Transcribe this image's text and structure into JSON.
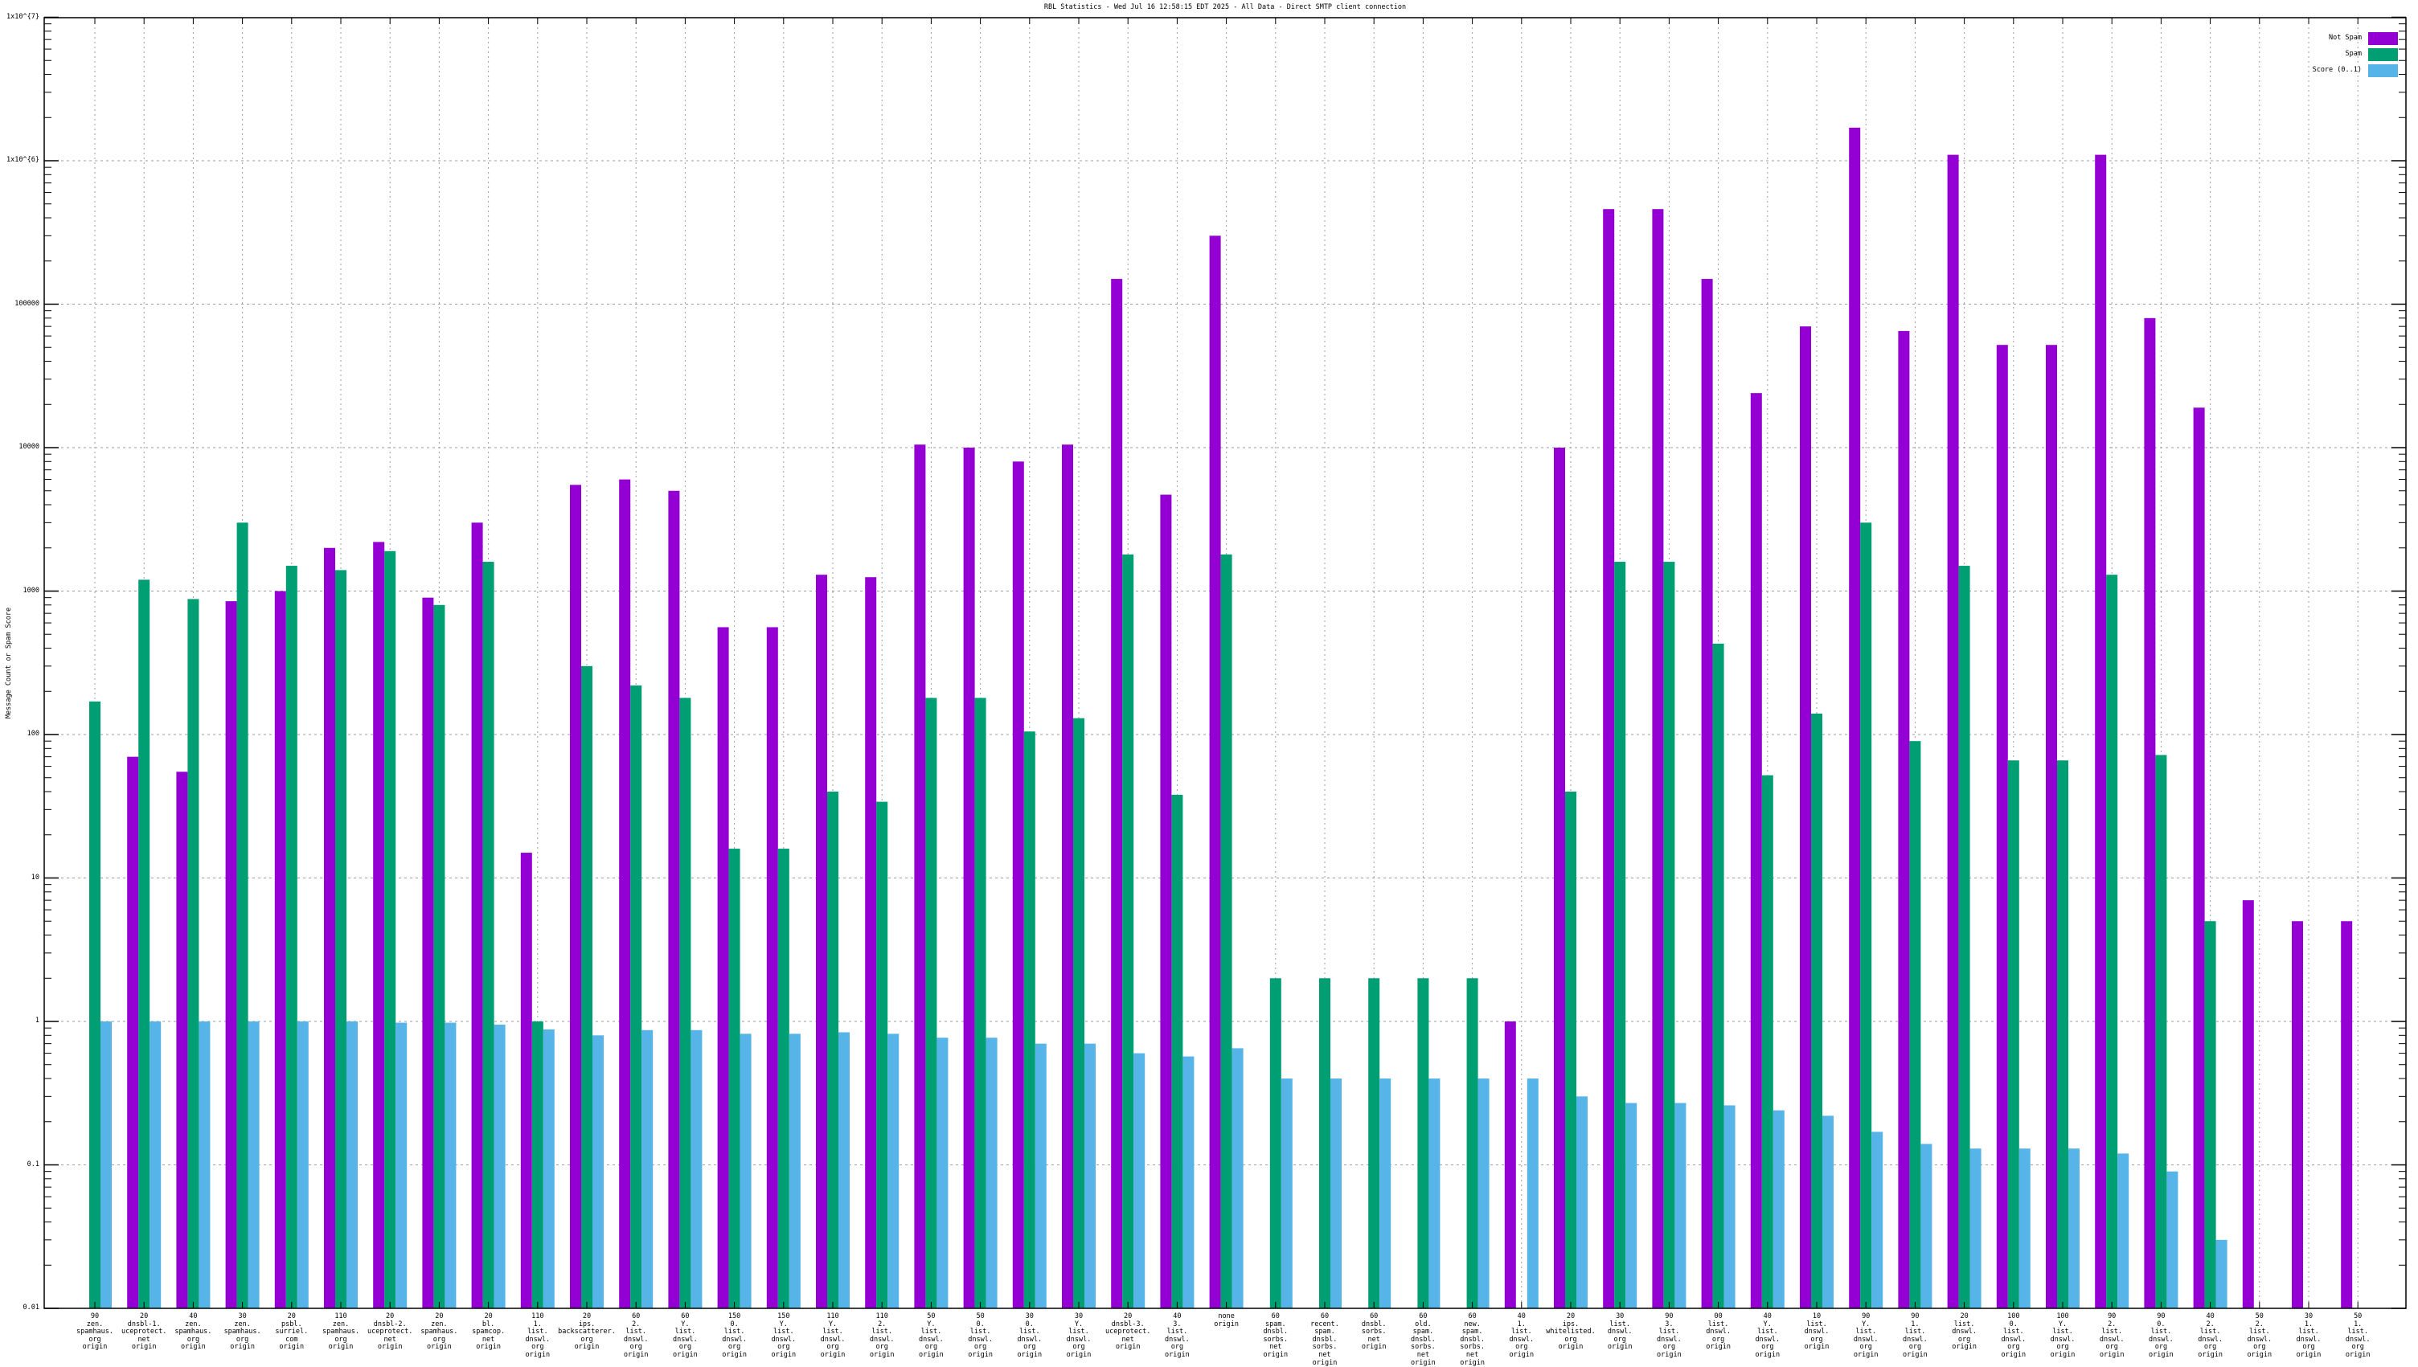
{
  "title": "RBL Statistics - Wed Jul 16 12:58:15 EDT 2025 - All Data - Direct SMTP client connection",
  "y_axis": {
    "label": "Message Count or Spam Score",
    "ticks": [
      {
        "label": "1x10^{7}",
        "value": 10000000
      },
      {
        "label": "1x10^{6}",
        "value": 1000000
      },
      {
        "label": "100000",
        "value": 100000
      },
      {
        "label": "10000",
        "value": 10000
      },
      {
        "label": "1000",
        "value": 1000
      },
      {
        "label": "100",
        "value": 100
      },
      {
        "label": "10",
        "value": 10
      },
      {
        "label": "1",
        "value": 1
      },
      {
        "label": "0.1",
        "value": 0.1
      },
      {
        "label": "0.01",
        "value": 0.01
      }
    ]
  },
  "legend": {
    "entries": [
      {
        "label": "Not Spam",
        "color": "#9400d3"
      },
      {
        "label": "Spam",
        "color": "#009e73"
      },
      {
        "label": "Score (0..1)",
        "color": "#56b4e9"
      }
    ]
  },
  "chart_data": {
    "type": "bar",
    "yscale": "log",
    "ylim": [
      0.01,
      10000000
    ],
    "grid": true,
    "legend_position": "top-right",
    "title": "RBL Statistics - Wed Jul 16 12:58:15 EDT 2025 - All Data - Direct SMTP client connection",
    "ylabel": "Message Count or Spam Score",
    "categories": [
      [
        "90",
        "zen.",
        "spamhaus.",
        "org",
        "origin"
      ],
      [
        "20",
        "dnsbl-1.",
        "uceprotect.",
        "net",
        "origin"
      ],
      [
        "40",
        "zen.",
        "spamhaus.",
        "org",
        "origin"
      ],
      [
        "30",
        "zen.",
        "spamhaus.",
        "org",
        "origin"
      ],
      [
        "20",
        "psbl.",
        "surriel.",
        "com",
        "origin"
      ],
      [
        "110",
        "zen.",
        "spamhaus.",
        "org",
        "origin"
      ],
      [
        "20",
        "dnsbl-2.",
        "uceprotect.",
        "net",
        "origin"
      ],
      [
        "20",
        "zen.",
        "spamhaus.",
        "org",
        "origin"
      ],
      [
        "20",
        "bl.",
        "spamcop.",
        "net",
        "origin"
      ],
      [
        "110",
        "1.",
        "list.",
        "dnswl.",
        "org",
        "origin"
      ],
      [
        "20",
        "ips.",
        "backscatterer.",
        "org",
        "origin"
      ],
      [
        "60",
        "2.",
        "list.",
        "dnswl.",
        "org",
        "origin"
      ],
      [
        "60",
        "Y.",
        "list.",
        "dnswl.",
        "org",
        "origin"
      ],
      [
        "150",
        "0.",
        "list.",
        "dnswl.",
        "org",
        "origin"
      ],
      [
        "150",
        "Y.",
        "list.",
        "dnswl.",
        "org",
        "origin"
      ],
      [
        "110",
        "Y.",
        "list.",
        "dnswl.",
        "org",
        "origin"
      ],
      [
        "110",
        "2.",
        "list.",
        "dnswl.",
        "org",
        "origin"
      ],
      [
        "50",
        "Y.",
        "list.",
        "dnswl.",
        "org",
        "origin"
      ],
      [
        "50",
        "0.",
        "list.",
        "dnswl.",
        "org",
        "origin"
      ],
      [
        "30",
        "0.",
        "list.",
        "dnswl.",
        "org",
        "origin"
      ],
      [
        "30",
        "Y.",
        "list.",
        "dnswl.",
        "org",
        "origin"
      ],
      [
        "20",
        "dnsbl-3.",
        "uceprotect.",
        "net",
        "origin"
      ],
      [
        "40",
        "3.",
        "list.",
        "dnswl.",
        "org",
        "origin"
      ],
      [
        "none",
        "origin"
      ],
      [
        "60",
        "spam.",
        "dnsbl.",
        "sorbs.",
        "net",
        "origin"
      ],
      [
        "60",
        "recent.",
        "spam.",
        "dnsbl.",
        "sorbs.",
        "net",
        "origin"
      ],
      [
        "60",
        "dnsbl.",
        "sorbs.",
        "net",
        "origin"
      ],
      [
        "60",
        "old.",
        "spam.",
        "dnsbl.",
        "sorbs.",
        "net",
        "origin"
      ],
      [
        "60",
        "new.",
        "spam.",
        "dnsbl.",
        "sorbs.",
        "net",
        "origin"
      ],
      [
        "40",
        "1.",
        "list.",
        "dnswl.",
        "org",
        "origin"
      ],
      [
        "20",
        "ips.",
        "whitelisted.",
        "org",
        "origin"
      ],
      [
        "30",
        "list.",
        "dnswl.",
        "org",
        "origin"
      ],
      [
        "90",
        "3.",
        "list.",
        "dnswl.",
        "org",
        "origin"
      ],
      [
        "00",
        "list.",
        "dnswl.",
        "org",
        "origin"
      ],
      [
        "40",
        "Y.",
        "list.",
        "dnswl.",
        "org",
        "origin"
      ],
      [
        "10",
        "list.",
        "dnswl.",
        "org",
        "origin"
      ],
      [
        "90",
        "Y.",
        "list.",
        "dnswl.",
        "org",
        "origin"
      ],
      [
        "90",
        "1.",
        "list.",
        "dnswl.",
        "org",
        "origin"
      ],
      [
        "20",
        "list.",
        "dnswl.",
        "org",
        "origin"
      ],
      [
        "100",
        "0.",
        "list.",
        "dnswl.",
        "org",
        "origin"
      ],
      [
        "100",
        "Y.",
        "list.",
        "dnswl.",
        "org",
        "origin"
      ],
      [
        "90",
        "2.",
        "list.",
        "dnswl.",
        "org",
        "origin"
      ],
      [
        "90",
        "0.",
        "list.",
        "dnswl.",
        "org",
        "origin"
      ],
      [
        "40",
        "2.",
        "list.",
        "dnswl.",
        "org",
        "origin"
      ],
      [
        "50",
        "2.",
        "list.",
        "dnswl.",
        "org",
        "origin"
      ],
      [
        "30",
        "1.",
        "list.",
        "dnswl.",
        "org",
        "origin"
      ],
      [
        "50",
        "1.",
        "list.",
        "dnswl.",
        "org",
        "origin"
      ]
    ],
    "series": [
      {
        "name": "Not Spam",
        "color": "#9400d3",
        "values": [
          null,
          70,
          55,
          850,
          1000,
          2000,
          2200,
          900,
          3000,
          15,
          5500,
          6000,
          5000,
          560,
          560,
          1300,
          1250,
          10500,
          10000,
          8000,
          10500,
          150000,
          4700,
          300000,
          null,
          null,
          null,
          null,
          null,
          1,
          10000,
          460000,
          460000,
          150000,
          24000,
          70000,
          1700000,
          65000,
          1100000,
          52000,
          52000,
          1100000,
          80000,
          19000,
          7,
          5,
          5
        ]
      },
      {
        "name": "Spam",
        "color": "#009e73",
        "values": [
          170,
          1200,
          880,
          3000,
          1500,
          1400,
          1900,
          800,
          1600,
          1,
          300,
          220,
          180,
          16,
          16,
          40,
          34,
          180,
          180,
          105,
          130,
          1800,
          38,
          1800,
          2,
          2,
          2,
          2,
          2,
          null,
          40,
          1600,
          1600,
          430,
          52,
          140,
          3000,
          90,
          1500,
          66,
          66,
          1300,
          72,
          5,
          null,
          null,
          null
        ]
      },
      {
        "name": "Score (0..1)",
        "color": "#56b4e9",
        "values": [
          1,
          1,
          1,
          1,
          1,
          1,
          0.98,
          0.98,
          0.95,
          0.88,
          0.8,
          0.87,
          0.87,
          0.82,
          0.82,
          0.84,
          0.82,
          0.77,
          0.77,
          0.7,
          0.7,
          0.6,
          0.57,
          0.65,
          0.4,
          0.4,
          0.4,
          0.4,
          0.4,
          0.4,
          0.3,
          0.27,
          0.27,
          0.26,
          0.24,
          0.22,
          0.17,
          0.14,
          0.13,
          0.13,
          0.13,
          0.12,
          0.09,
          0.03,
          null,
          null,
          null
        ]
      }
    ]
  },
  "colors": {
    "border": "#000000",
    "grid": "#9e9e9e",
    "background": "#ffffff"
  }
}
